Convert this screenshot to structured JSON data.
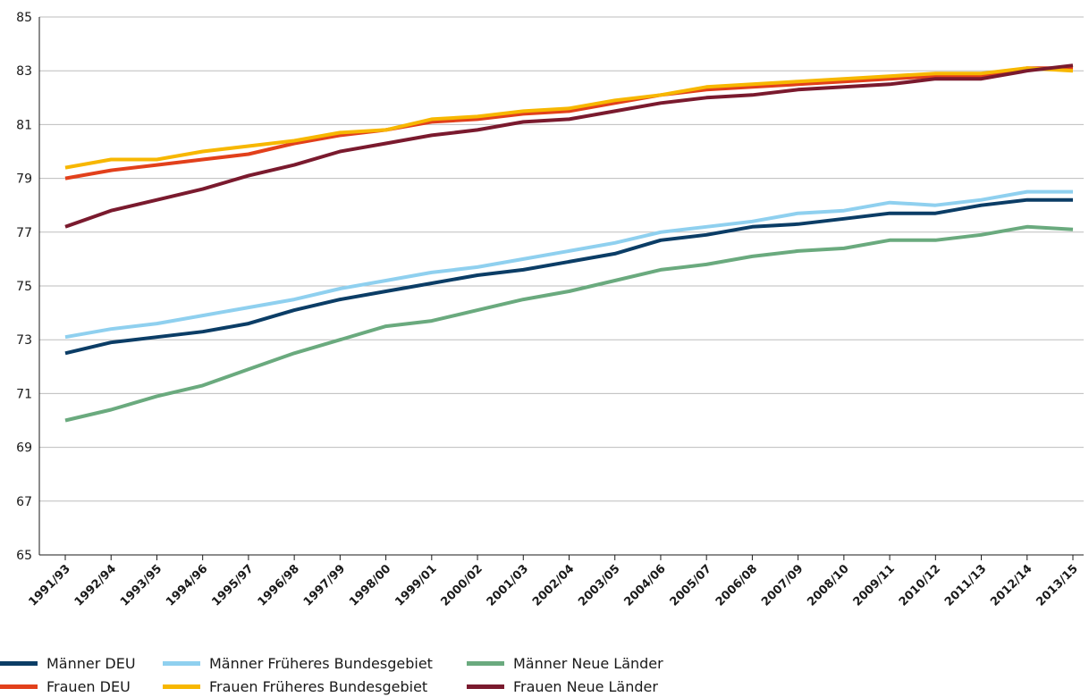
{
  "chart_data": {
    "type": "line",
    "title": "",
    "xlabel": "",
    "ylabel": "",
    "ylim": [
      65,
      85
    ],
    "yticks": [
      "65",
      "67",
      "69",
      "71",
      "73",
      "75",
      "77",
      "79",
      "81",
      "83",
      "85"
    ],
    "grid": "horizontal",
    "legend_position": "bottom-left",
    "categories": [
      "1991/93",
      "1992/94",
      "1993/95",
      "1994/96",
      "1995/97",
      "1996/98",
      "1997/99",
      "1998/00",
      "1999/01",
      "2000/02",
      "2001/03",
      "2002/04",
      "2003/05",
      "2004/06",
      "2005/07",
      "2006/08",
      "2007/09",
      "2008/10",
      "2009/11",
      "2010/12",
      "2011/13",
      "2012/14",
      "2013/15"
    ],
    "series": [
      {
        "name": "Männer DEU",
        "color": "#0b3d66",
        "values": [
          72.5,
          72.9,
          73.1,
          73.3,
          73.6,
          74.1,
          74.5,
          74.8,
          75.1,
          75.4,
          75.6,
          75.9,
          76.2,
          76.7,
          76.9,
          77.2,
          77.3,
          77.5,
          77.7,
          77.7,
          78.0,
          78.2,
          78.2
        ]
      },
      {
        "name": "Männer Früheres Bundesgebiet",
        "color": "#8fd0ef",
        "values": [
          73.1,
          73.4,
          73.6,
          73.9,
          74.2,
          74.5,
          74.9,
          75.2,
          75.5,
          75.7,
          76.0,
          76.3,
          76.6,
          77.0,
          77.2,
          77.4,
          77.7,
          77.8,
          78.1,
          78.0,
          78.2,
          78.5,
          78.5
        ]
      },
      {
        "name": "Männer Neue Länder",
        "color": "#6aaa7e",
        "values": [
          70.0,
          70.4,
          70.9,
          71.3,
          71.9,
          72.5,
          73.0,
          73.5,
          73.7,
          74.1,
          74.5,
          74.8,
          75.2,
          75.6,
          75.8,
          76.1,
          76.3,
          76.4,
          76.7,
          76.7,
          76.9,
          77.2,
          77.1
        ]
      },
      {
        "name": "Frauen DEU",
        "color": "#e2401b",
        "values": [
          79.0,
          79.3,
          79.5,
          79.7,
          79.9,
          80.3,
          80.6,
          80.8,
          81.1,
          81.2,
          81.4,
          81.5,
          81.8,
          82.1,
          82.3,
          82.4,
          82.5,
          82.6,
          82.7,
          82.8,
          82.8,
          83.1,
          83.1
        ]
      },
      {
        "name": "Frauen Früheres Bundesgebiet",
        "color": "#f7b700",
        "values": [
          79.4,
          79.7,
          79.7,
          80.0,
          80.2,
          80.4,
          80.7,
          80.8,
          81.2,
          81.3,
          81.5,
          81.6,
          81.9,
          82.1,
          82.4,
          82.5,
          82.6,
          82.7,
          82.8,
          82.9,
          82.9,
          83.1,
          83.0
        ]
      },
      {
        "name": "Frauen Neue Länder",
        "color": "#7a1a2e",
        "values": [
          77.2,
          77.8,
          78.2,
          78.6,
          79.1,
          79.5,
          80.0,
          80.3,
          80.6,
          80.8,
          81.1,
          81.2,
          81.5,
          81.8,
          82.0,
          82.1,
          82.3,
          82.4,
          82.5,
          82.7,
          82.7,
          83.0,
          83.2
        ]
      }
    ]
  }
}
